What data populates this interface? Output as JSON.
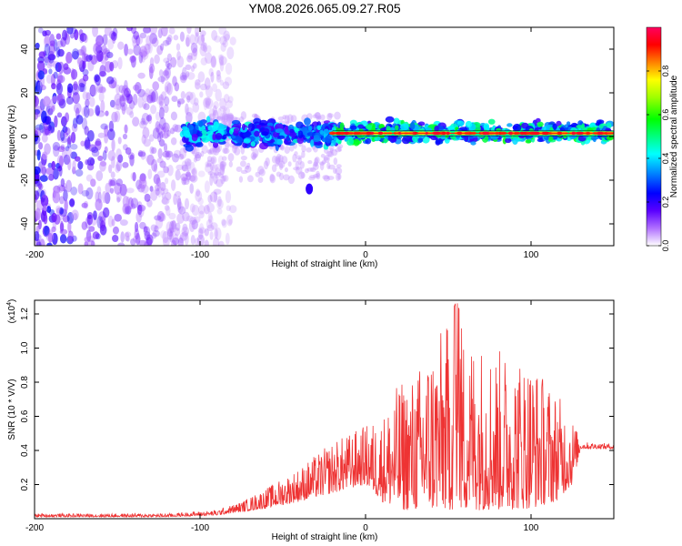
{
  "title": "YM08.2026.065.09.27.R05",
  "chart_data": [
    {
      "type": "heatmap",
      "name": "spectrogram",
      "xlabel": "Height of straight line (km)",
      "ylabel": "Frequency (Hz)",
      "xlim": [
        -200,
        150
      ],
      "ylim": [
        -50,
        50
      ],
      "xticks": [
        -200,
        -100,
        0,
        100
      ],
      "xtick_labels": [
        "-200",
        "-100",
        "0",
        "100"
      ],
      "yticks": [
        -40,
        -20,
        0,
        20,
        40
      ],
      "ytick_labels": [
        "-40",
        "-20",
        "0",
        "20",
        "40"
      ],
      "colorbar": {
        "label": "Normalized spectral amplitude",
        "range": [
          0,
          1
        ],
        "ticks": [
          0.0,
          0.2,
          0.4,
          0.6,
          0.8
        ],
        "tick_labels": [
          "0.0",
          "0.2",
          "0.4",
          "0.6",
          "0.8"
        ],
        "colormap": [
          "#ffffff",
          "#8000ff",
          "#0000ff",
          "#00a0ff",
          "#00ffff",
          "#00ff80",
          "#00ff00",
          "#80ff00",
          "#ffff00",
          "#ff8000",
          "#ff0000",
          "#ff0080"
        ]
      },
      "bands": [
        {
          "name": "noise-field",
          "x_range": [
            -200,
            -85
          ],
          "freq_range": [
            -50,
            50
          ],
          "amplitude": 0.08
        },
        {
          "name": "transition-band",
          "x_range": [
            -110,
            -20
          ],
          "freq_range": [
            -8,
            10
          ],
          "amplitude": 0.35
        },
        {
          "name": "central-band",
          "x_range": [
            -20,
            150
          ],
          "freq_range": [
            -3,
            8
          ],
          "amplitude": 0.45
        },
        {
          "name": "carrier-line",
          "x_range": [
            -20,
            150
          ],
          "freq": 1.5,
          "amplitude": 0.95
        }
      ]
    },
    {
      "type": "line",
      "name": "snr",
      "xlabel": "Height of straight line (km)",
      "ylabel": "SNR (10 * V/V)",
      "y_multiplier": "(x10",
      "y_multiplier_exp": "4",
      "xlim": [
        -200,
        150
      ],
      "ylim": [
        0,
        1.28
      ],
      "xticks": [
        -200,
        -100,
        0,
        100
      ],
      "xtick_labels": [
        "-200",
        "-100",
        "0",
        "100"
      ],
      "yticks": [
        0.2,
        0.4,
        0.6,
        0.8,
        1.0,
        1.2
      ],
      "ytick_labels": [
        "0.2",
        "0.4",
        "0.6",
        "0.8",
        "1.0",
        "1.2"
      ],
      "color": "#ee3333",
      "envelope": {
        "x": [
          -200,
          -120,
          -90,
          -75,
          -60,
          -40,
          -20,
          0,
          10,
          20,
          30,
          40,
          50,
          55,
          60,
          80,
          100,
          115,
          125,
          130,
          150
        ],
        "low": [
          0.01,
          0.01,
          0.02,
          0.04,
          0.06,
          0.1,
          0.15,
          0.2,
          0.1,
          0.05,
          0.05,
          0.05,
          0.05,
          0.05,
          0.05,
          0.05,
          0.06,
          0.1,
          0.2,
          0.41,
          0.41
        ],
        "high": [
          0.03,
          0.03,
          0.05,
          0.1,
          0.18,
          0.3,
          0.45,
          0.55,
          0.6,
          0.8,
          0.85,
          1.05,
          1.15,
          1.28,
          1.1,
          1.0,
          0.95,
          0.75,
          0.6,
          0.45,
          0.44
        ]
      }
    }
  ]
}
